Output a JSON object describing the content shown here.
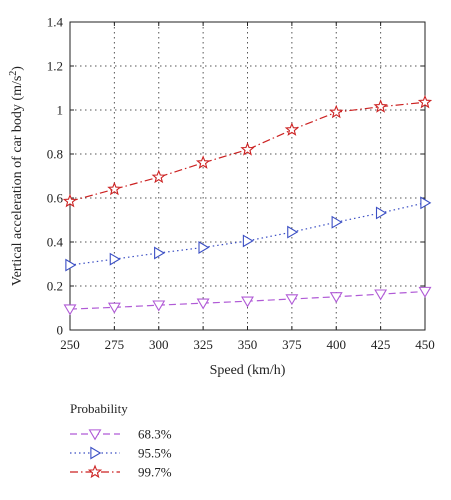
{
  "chart_data": {
    "type": "line",
    "xlabel": "Speed (km/h)",
    "ylabel_main": "Vertical acceleration of car body (m/s",
    "ylabel_exp": "2",
    "ylabel_close": ")",
    "x": [
      250,
      275,
      300,
      325,
      350,
      375,
      400,
      425,
      450
    ],
    "xlim": [
      250,
      450
    ],
    "ylim": [
      0,
      1.4
    ],
    "xticks": [
      "250",
      "275",
      "300",
      "325",
      "350",
      "375",
      "400",
      "425",
      "450"
    ],
    "yticks": [
      "0",
      "0.2",
      "0.4",
      "0.6",
      "0.8",
      "1",
      "1.2",
      "1.4"
    ],
    "grid": true,
    "legend_title": "Probability",
    "legend_placement": "bottom-left, below plot",
    "series": [
      {
        "name": "68.3%",
        "color": "#b05ad6",
        "marker": "triangle-down",
        "line_style": "dash",
        "values": [
          0.095,
          0.103,
          0.113,
          0.122,
          0.131,
          0.141,
          0.151,
          0.163,
          0.175
        ]
      },
      {
        "name": "95.5%",
        "color": "#3b4fc4",
        "marker": "triangle-right",
        "line_style": "dot",
        "values": [
          0.295,
          0.322,
          0.35,
          0.375,
          0.405,
          0.445,
          0.49,
          0.532,
          0.578
        ]
      },
      {
        "name": "99.7%",
        "color": "#cc2222",
        "marker": "star",
        "line_style": "dashdot",
        "values": [
          0.585,
          0.64,
          0.695,
          0.76,
          0.82,
          0.91,
          0.99,
          1.015,
          1.035
        ]
      }
    ]
  }
}
